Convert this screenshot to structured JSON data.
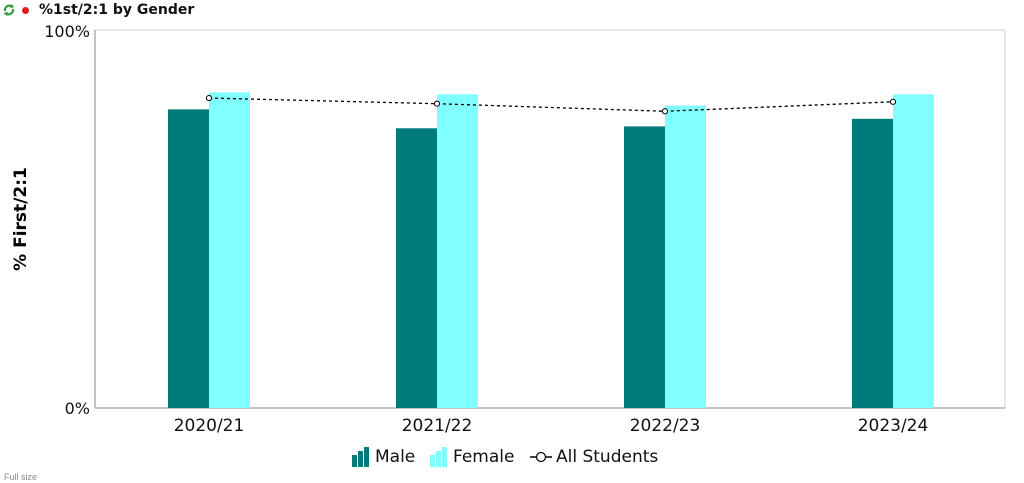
{
  "header": {
    "title": "%1st/2:1 by Gender",
    "status_color": "#e01b1b",
    "refresh_icon": "refresh-icon"
  },
  "footer": {
    "label": "Full size"
  },
  "colors": {
    "male": "#007b7b",
    "female": "#7fffff",
    "all_students": "#000000",
    "frame": "#d0d0d0"
  },
  "chart_data": {
    "type": "bar",
    "title": "%1st/2:1 by Gender",
    "ylabel": "% First/2:1",
    "xlabel": "",
    "ylim": [
      0,
      100
    ],
    "y_tick_labels": [
      "0%",
      "100%"
    ],
    "categories": [
      "2020/21",
      "2021/22",
      "2022/23",
      "2023/24"
    ],
    "series": [
      {
        "name": "Male",
        "type": "bar",
        "values": [
          79,
          74,
          74.5,
          76.5
        ]
      },
      {
        "name": "Female",
        "type": "bar",
        "values": [
          83.5,
          83,
          80,
          83
        ]
      },
      {
        "name": "All Students",
        "type": "line",
        "style": "dashed",
        "values": [
          82,
          80.5,
          78.5,
          81
        ]
      }
    ],
    "legend_position": "bottom",
    "grid": false
  }
}
